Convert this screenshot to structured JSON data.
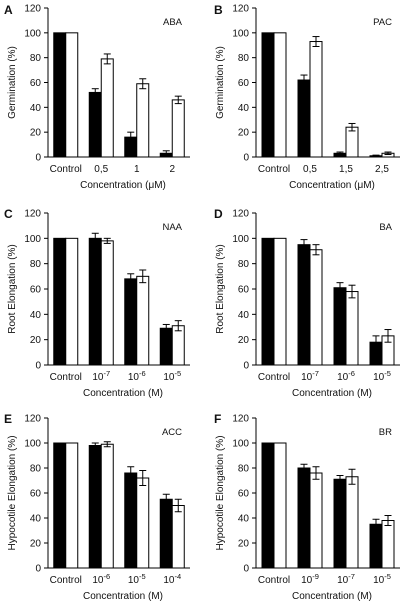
{
  "chart_data": [
    {
      "type": "bar",
      "panel": "A",
      "tag": "ABA",
      "categories": [
        "Control",
        "0,5",
        "1",
        "2"
      ],
      "series": [
        {
          "color": "#000000",
          "values": [
            100,
            52,
            16,
            3
          ],
          "errors": [
            0,
            3,
            4,
            2
          ]
        },
        {
          "color": "#ffffff",
          "values": [
            100,
            79,
            59,
            46
          ],
          "errors": [
            0,
            4,
            4,
            3
          ]
        }
      ],
      "xlabel": "Concentration (μM)",
      "ylabel": "Germination (%)",
      "ylim": [
        0,
        120
      ],
      "yticks": [
        0,
        20,
        40,
        60,
        80,
        100,
        120
      ]
    },
    {
      "type": "bar",
      "panel": "B",
      "tag": "PAC",
      "categories": [
        "Control",
        "0,5",
        "1,5",
        "2,5"
      ],
      "series": [
        {
          "color": "#000000",
          "values": [
            100,
            62,
            3,
            1
          ],
          "errors": [
            0,
            4,
            1,
            0.5
          ]
        },
        {
          "color": "#ffffff",
          "values": [
            100,
            93,
            24,
            3
          ],
          "errors": [
            0,
            4,
            3,
            1
          ]
        }
      ],
      "xlabel": "Concentration (μM)",
      "ylabel": "Germination (%)",
      "ylim": [
        0,
        120
      ],
      "yticks": [
        0,
        20,
        40,
        60,
        80,
        100,
        120
      ]
    },
    {
      "type": "bar",
      "panel": "C",
      "tag": "NAA",
      "categories": [
        "Control",
        "10",
        "10",
        "10"
      ],
      "category_exponents": [
        "",
        "-7",
        "-6",
        "-5"
      ],
      "series": [
        {
          "color": "#000000",
          "values": [
            100,
            100,
            68,
            29
          ],
          "errors": [
            0,
            4,
            4,
            3
          ]
        },
        {
          "color": "#ffffff",
          "values": [
            100,
            98,
            70,
            31
          ],
          "errors": [
            0,
            2,
            5,
            4
          ]
        }
      ],
      "xlabel": "Concentration (M)",
      "ylabel": "Root Elongation (%)",
      "ylim": [
        0,
        120
      ],
      "yticks": [
        0,
        20,
        40,
        60,
        80,
        100,
        120
      ]
    },
    {
      "type": "bar",
      "panel": "D",
      "tag": "BA",
      "categories": [
        "Control",
        "10",
        "10",
        "10"
      ],
      "category_exponents": [
        "",
        "-7",
        "-6",
        "-5"
      ],
      "series": [
        {
          "color": "#000000",
          "values": [
            100,
            95,
            61,
            18
          ],
          "errors": [
            0,
            4,
            4,
            5
          ]
        },
        {
          "color": "#ffffff",
          "values": [
            100,
            91,
            58,
            23
          ],
          "errors": [
            0,
            4,
            5,
            5
          ]
        }
      ],
      "xlabel": "Concentration (M)",
      "ylabel": "Root Elongation (%)",
      "ylim": [
        0,
        120
      ],
      "yticks": [
        0,
        20,
        40,
        60,
        80,
        100,
        120
      ]
    },
    {
      "type": "bar",
      "panel": "E",
      "tag": "ACC",
      "categories": [
        "Control",
        "10",
        "10",
        "10"
      ],
      "category_exponents": [
        "",
        "-6",
        "-5",
        "-4"
      ],
      "series": [
        {
          "color": "#000000",
          "values": [
            100,
            98,
            76,
            55
          ],
          "errors": [
            0,
            2,
            5,
            4
          ]
        },
        {
          "color": "#ffffff",
          "values": [
            100,
            99,
            72,
            50
          ],
          "errors": [
            0,
            2,
            6,
            5
          ]
        }
      ],
      "xlabel": "Concentration (M)",
      "ylabel": "Hypocotile Elongation (%)",
      "ylim": [
        0,
        120
      ],
      "yticks": [
        0,
        20,
        40,
        60,
        80,
        100,
        120
      ]
    },
    {
      "type": "bar",
      "panel": "F",
      "tag": "BR",
      "categories": [
        "Control",
        "10",
        "10",
        "10"
      ],
      "category_exponents": [
        "",
        "-9",
        "-7",
        "-5"
      ],
      "series": [
        {
          "color": "#000000",
          "values": [
            100,
            80,
            71,
            35
          ],
          "errors": [
            0,
            3,
            3,
            4
          ]
        },
        {
          "color": "#ffffff",
          "values": [
            100,
            76,
            73,
            38
          ],
          "errors": [
            0,
            5,
            6,
            4
          ]
        }
      ],
      "xlabel": "Concentration (M)",
      "ylabel": "Hypocotile Elongation (%)",
      "ylim": [
        0,
        120
      ],
      "yticks": [
        0,
        20,
        40,
        60,
        80,
        100,
        120
      ]
    }
  ]
}
